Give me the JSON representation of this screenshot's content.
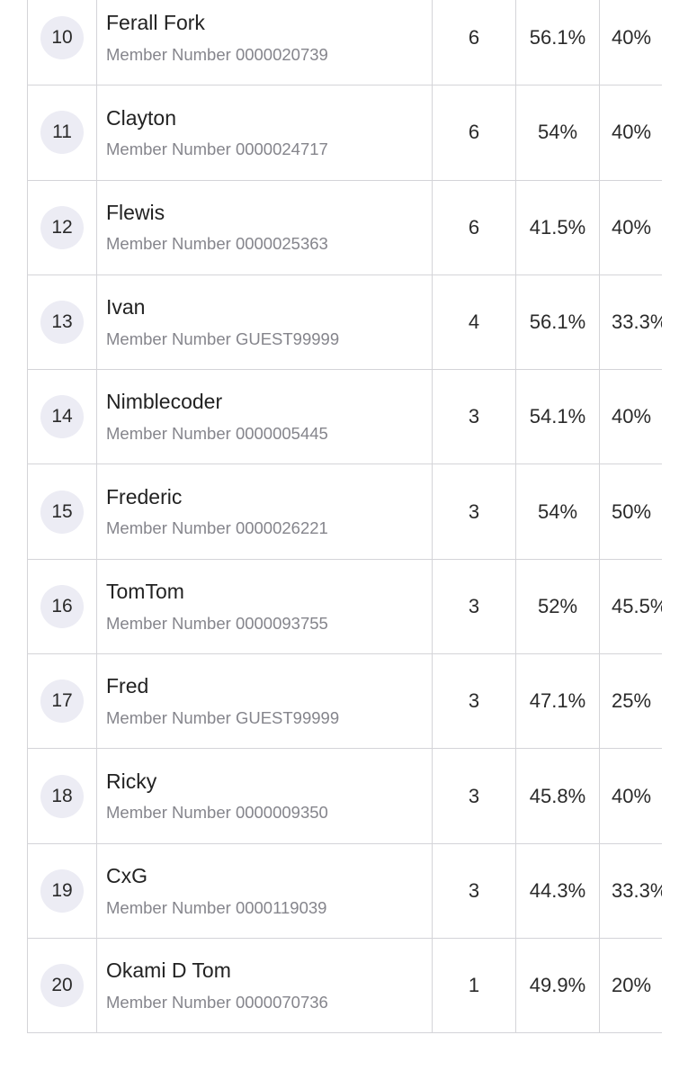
{
  "leaderboard": {
    "member_prefix": "Member Number",
    "rows": [
      {
        "rank": "10",
        "name": "Ferall Fork",
        "member_prefix": "Member Number",
        "member_id": "0000020739",
        "wins": "6",
        "pct1": "56.1%",
        "pct2": "40%"
      },
      {
        "rank": "11",
        "name": "Clayton",
        "member_prefix": "Member Number",
        "member_id": "0000024717",
        "wins": "6",
        "pct1": "54%",
        "pct2": "40%"
      },
      {
        "rank": "12",
        "name": "Flewis",
        "member_prefix": "Member Number",
        "member_id": "0000025363",
        "wins": "6",
        "pct1": "41.5%",
        "pct2": "40%"
      },
      {
        "rank": "13",
        "name": "Ivan",
        "member_prefix": "Member Number",
        "member_id": "GUEST99999",
        "wins": "4",
        "pct1": "56.1%",
        "pct2": "33.3%"
      },
      {
        "rank": "14",
        "name": "Nimblecoder",
        "member_prefix": "Member Number",
        "member_id": "0000005445",
        "wins": "3",
        "pct1": "54.1%",
        "pct2": "40%"
      },
      {
        "rank": "15",
        "name": "Frederic",
        "member_prefix": "Member Number",
        "member_id": "0000026221",
        "wins": "3",
        "pct1": "54%",
        "pct2": "50%"
      },
      {
        "rank": "16",
        "name": "TomTom",
        "member_prefix": "Member Number",
        "member_id": "0000093755",
        "wins": "3",
        "pct1": "52%",
        "pct2": "45.5%"
      },
      {
        "rank": "17",
        "name": "Fred",
        "member_prefix": "Member Number",
        "member_id": "GUEST99999",
        "wins": "3",
        "pct1": "47.1%",
        "pct2": "25%"
      },
      {
        "rank": "18",
        "name": "Ricky",
        "member_prefix": "Member Number",
        "member_id": "0000009350",
        "wins": "3",
        "pct1": "45.8%",
        "pct2": "40%"
      },
      {
        "rank": "19",
        "name": "CxG",
        "member_prefix": "Member Number",
        "member_id": "0000119039",
        "wins": "3",
        "pct1": "44.3%",
        "pct2": "33.3%"
      },
      {
        "rank": "20",
        "name": "Okami D Tom",
        "member_prefix": "Member Number",
        "member_id": "0000070736",
        "wins": "1",
        "pct1": "49.9%",
        "pct2": "20%"
      }
    ]
  }
}
